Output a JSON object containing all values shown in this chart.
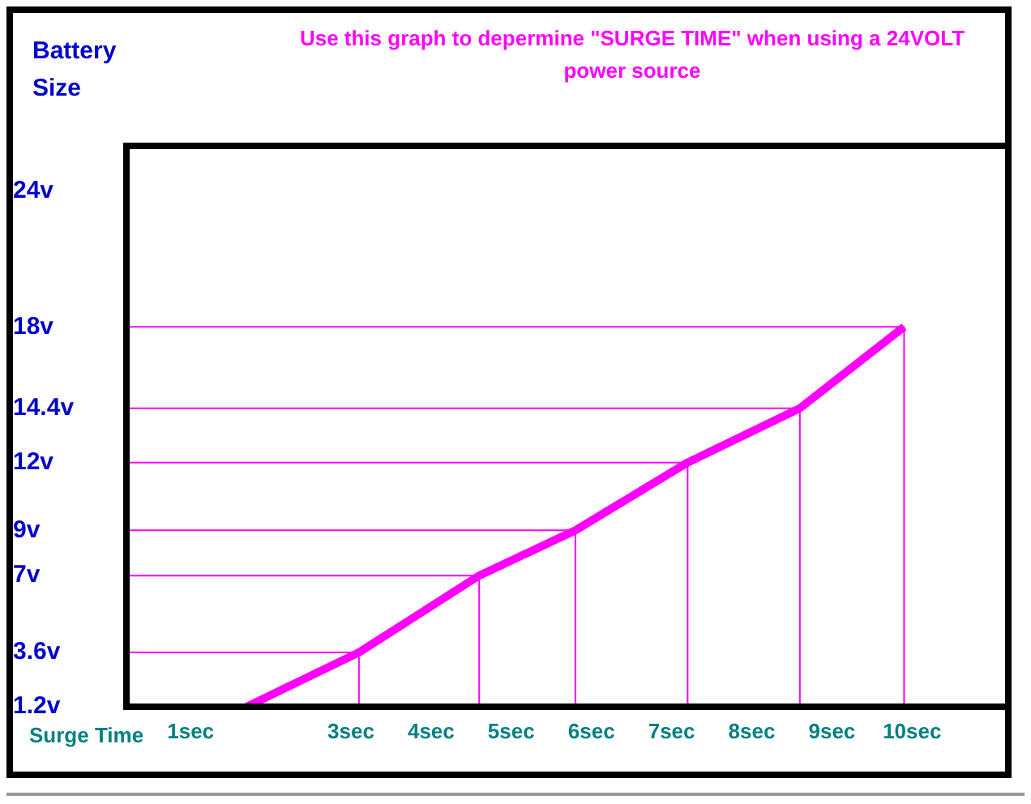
{
  "chart_data": {
    "type": "line",
    "title": "Use this graph to depermine \"SURGE TIME\" when using a 24VOLT power source",
    "ylabel": "Battery Size",
    "xlabel": "Surge Time",
    "x": [
      1.7,
      3.1,
      4.6,
      5.8,
      7.2,
      8.6,
      9.9
    ],
    "series": [
      {
        "color": "#ff00ff",
        "values": [
          1.2,
          3.6,
          7,
          9,
          12,
          14.4,
          18
        ]
      },
      {
        "color": "#ff00ff",
        "x": [
          0.2,
          3.1,
          3.1
        ],
        "values": [
          3.6,
          3.6,
          1.2
        ]
      },
      {
        "color": "#ff00ff",
        "x": [
          0.2,
          4.6,
          4.6
        ],
        "values": [
          7,
          7,
          1.2
        ]
      },
      {
        "color": "#ff00ff",
        "x": [
          0.2,
          5.8,
          5.8
        ],
        "values": [
          9,
          9,
          1.2
        ]
      },
      {
        "color": "#ff00ff",
        "x": [
          0.2,
          7.2,
          7.2
        ],
        "values": [
          12,
          12,
          1.2
        ]
      },
      {
        "color": "#ff00ff",
        "x": [
          0.2,
          8.6,
          8.6
        ],
        "values": [
          14.4,
          14.4,
          1.2
        ]
      },
      {
        "color": "#ff00ff",
        "x": [
          0.2,
          9.9,
          9.9
        ],
        "values": [
          18,
          18,
          1.2
        ]
      }
    ],
    "xlim": [
      0.2,
      11.2
    ],
    "xticks": [
      {
        "value": 1,
        "label": "1sec"
      },
      {
        "value": 3,
        "label": "3sec"
      },
      {
        "value": 4,
        "label": "4sec"
      },
      {
        "value": 5,
        "label": "5sec"
      },
      {
        "value": 6,
        "label": "6sec"
      },
      {
        "value": 7,
        "label": "7sec"
      },
      {
        "value": 8,
        "label": "8sec"
      },
      {
        "value": 9,
        "label": "9sec"
      },
      {
        "value": 10,
        "label": "10sec"
      }
    ],
    "ylim": [
      1.2,
      26
    ],
    "yticks": [
      {
        "value": 1.2,
        "label": "1.2v"
      },
      {
        "value": 3.6,
        "label": "3.6v"
      },
      {
        "value": 7,
        "label": "7v"
      },
      {
        "value": 9,
        "label": "9v"
      },
      {
        "value": 12,
        "label": "12v"
      },
      {
        "value": 14.4,
        "label": "14.4v"
      },
      {
        "value": 18,
        "label": "18v"
      },
      {
        "value": 24,
        "label": "24v"
      }
    ],
    "grid": false,
    "legend": false,
    "marker": "none",
    "line_style": "solid"
  }
}
